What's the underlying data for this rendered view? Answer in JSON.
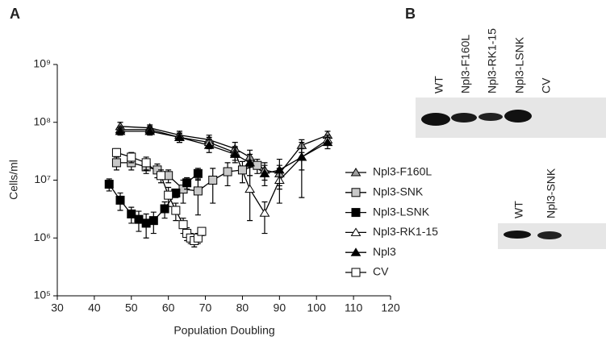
{
  "chart_data": {
    "type": "line",
    "panel_label": "A",
    "x_label": "Population Doubling",
    "y_label": "Cells/ml",
    "xlim": [
      30,
      120
    ],
    "xticks": [
      30,
      40,
      50,
      60,
      70,
      80,
      90,
      100,
      110,
      120
    ],
    "ylim": [
      100000,
      1000000000
    ],
    "log_y": true,
    "yticks": [
      {
        "value": 100000,
        "label": "10⁵"
      },
      {
        "value": 1000000,
        "label": "10⁶"
      },
      {
        "value": 10000000,
        "label": "10⁷"
      },
      {
        "value": 100000000,
        "label": "10⁸"
      },
      {
        "value": 1000000000,
        "label": "10⁹"
      }
    ],
    "legend": "right",
    "line_color": "#000000",
    "series": [
      {
        "name": "Npl3-F160L",
        "marker": "triangle",
        "color": "#a0a0a0",
        "x": [
          47,
          55,
          63,
          71,
          78,
          82,
          86,
          90,
          96,
          103
        ],
        "values": [
          85000000,
          80000000,
          60000000,
          50000000,
          35000000,
          25000000,
          15000000,
          13000000,
          40000000,
          60000000
        ],
        "errors": [
          15000000,
          10000000,
          10000000,
          10000000,
          10000000,
          8000000,
          5000000,
          5000000,
          10000000,
          10000000
        ]
      },
      {
        "name": "Npl3-SNK",
        "marker": "square",
        "color": "#c8c8c8",
        "x": [
          46,
          50,
          54,
          57,
          60,
          64,
          68,
          72,
          76,
          80,
          84
        ],
        "values": [
          20000000,
          20000000,
          17000000,
          15000000,
          12000000,
          7000000,
          6500000,
          10000000,
          14000000,
          15000000,
          18000000
        ],
        "errors": [
          5000000,
          5000000,
          4000000,
          4000000,
          3000000,
          3000000,
          4000000,
          6000000,
          6000000,
          6000000,
          5000000
        ]
      },
      {
        "name": "Npl3-LSNK",
        "marker": "square",
        "color": "#000000",
        "x": [
          44,
          47,
          50,
          52,
          54,
          56,
          59,
          62,
          65,
          68
        ],
        "values": [
          8500000,
          4500000,
          2600000,
          2100000,
          1800000,
          2000000,
          3200000,
          6000000,
          9000000,
          13000000
        ],
        "errors": [
          2000000,
          1500000,
          800000,
          800000,
          800000,
          800000,
          1000000,
          1000000,
          2000000,
          3000000
        ]
      },
      {
        "name": "Npl3-RK1-15",
        "marker": "triangle",
        "color": "#ffffff",
        "x": [
          47,
          55,
          63,
          71,
          78,
          82,
          86,
          90,
          96,
          103
        ],
        "values": [
          75000000,
          75000000,
          55000000,
          45000000,
          30000000,
          7000000,
          2700000,
          10000000,
          25000000,
          50000000
        ],
        "errors": [
          10000000,
          10000000,
          10000000,
          10000000,
          8000000,
          5000000,
          1500000,
          6000000,
          20000000,
          10000000
        ]
      },
      {
        "name": "Npl3",
        "marker": "triangle",
        "color": "#000000",
        "x": [
          47,
          55,
          63,
          71,
          78,
          82,
          86,
          90,
          96,
          103
        ],
        "values": [
          70000000,
          70000000,
          55000000,
          40000000,
          28000000,
          20000000,
          13000000,
          15000000,
          25000000,
          45000000
        ],
        "errors": [
          10000000,
          10000000,
          10000000,
          10000000,
          8000000,
          8000000,
          5000000,
          8000000,
          10000000,
          10000000
        ]
      },
      {
        "name": "CV",
        "marker": "square",
        "color": "#ffffff",
        "x": [
          46,
          50,
          54,
          58,
          60,
          62,
          64,
          65,
          66,
          67,
          68,
          69
        ],
        "values": [
          30000000,
          25000000,
          20000000,
          12000000,
          5500000,
          3000000,
          1700000,
          1200000,
          1000000,
          900000,
          1000000,
          1300000
        ],
        "errors": [
          5000000,
          5000000,
          5000000,
          3000000,
          2000000,
          1000000,
          500000,
          300000,
          200000,
          200000,
          200000,
          200000
        ]
      }
    ]
  },
  "panel_b": {
    "label": "B",
    "blot_1_lanes": [
      "WT",
      "Npl3-F160L",
      "Npl3-RK1-15",
      "Npl3-LSNK",
      "CV"
    ],
    "blot_2_lanes": [
      "WT",
      "Npl3-SNK"
    ]
  }
}
